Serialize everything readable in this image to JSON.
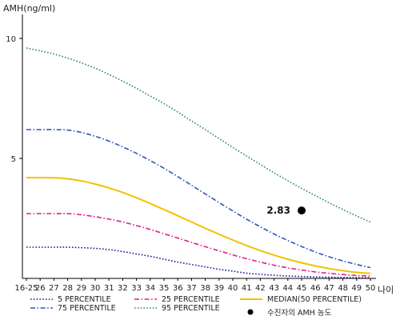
{
  "chart_data": {
    "type": "line",
    "ylabel": "AMH(ng/ml)",
    "xlabel": "나이",
    "x": [
      "16-25",
      "26",
      "27",
      "28",
      "29",
      "30",
      "31",
      "32",
      "33",
      "34",
      "35",
      "36",
      "37",
      "38",
      "39",
      "40",
      "41",
      "42",
      "43",
      "44",
      "45",
      "46",
      "47",
      "48",
      "49",
      "50"
    ],
    "ylim": [
      0,
      11
    ],
    "yticks": [
      5,
      10
    ],
    "grid": false,
    "legend_position": "bottom",
    "series": [
      {
        "name": "5 PERCENTILE",
        "color": "#1a1a99",
        "style": "dotted",
        "values": [
          1.3,
          1.3,
          1.3,
          1.3,
          1.28,
          1.25,
          1.2,
          1.12,
          1.02,
          0.92,
          0.8,
          0.68,
          0.58,
          0.48,
          0.38,
          0.3,
          0.22,
          0.17,
          0.13,
          0.1,
          0.08,
          0.06,
          0.05,
          0.04,
          0.03,
          0.03
        ]
      },
      {
        "name": "25 PERCENTILE",
        "color": "#e0208a",
        "style": "dashdot",
        "values": [
          2.7,
          2.7,
          2.7,
          2.7,
          2.65,
          2.57,
          2.47,
          2.35,
          2.2,
          2.04,
          1.86,
          1.68,
          1.5,
          1.32,
          1.15,
          0.98,
          0.82,
          0.68,
          0.55,
          0.44,
          0.35,
          0.27,
          0.21,
          0.16,
          0.12,
          0.1
        ]
      },
      {
        "name": "MEDIAN(50 PERCENTILE)",
        "color": "#f2c200",
        "style": "solid",
        "values": [
          4.2,
          4.2,
          4.19,
          4.15,
          4.06,
          3.93,
          3.77,
          3.58,
          3.36,
          3.12,
          2.87,
          2.61,
          2.35,
          2.09,
          1.84,
          1.6,
          1.37,
          1.16,
          0.97,
          0.8,
          0.65,
          0.52,
          0.41,
          0.32,
          0.25,
          0.21
        ]
      },
      {
        "name": "75 PERCENTILE",
        "color": "#3355bb",
        "style": "dashdot",
        "values": [
          6.2,
          6.2,
          6.2,
          6.18,
          6.08,
          5.92,
          5.72,
          5.48,
          5.21,
          4.91,
          4.59,
          4.24,
          3.88,
          3.52,
          3.16,
          2.81,
          2.47,
          2.15,
          1.85,
          1.58,
          1.33,
          1.1,
          0.9,
          0.73,
          0.58,
          0.45
        ]
      },
      {
        "name": "95 PERCENTILE",
        "color": "#2e8b57",
        "style": "dotted",
        "values": [
          9.6,
          9.48,
          9.35,
          9.18,
          8.98,
          8.76,
          8.5,
          8.22,
          7.92,
          7.6,
          7.28,
          6.93,
          6.56,
          6.2,
          5.83,
          5.46,
          5.1,
          4.75,
          4.4,
          4.07,
          3.75,
          3.45,
          3.15,
          2.87,
          2.6,
          2.35
        ]
      }
    ],
    "highlight": {
      "name": "수진자의 AMH 농도",
      "x": "45",
      "y": 2.83,
      "label": "2.83",
      "color": "#000000"
    }
  }
}
